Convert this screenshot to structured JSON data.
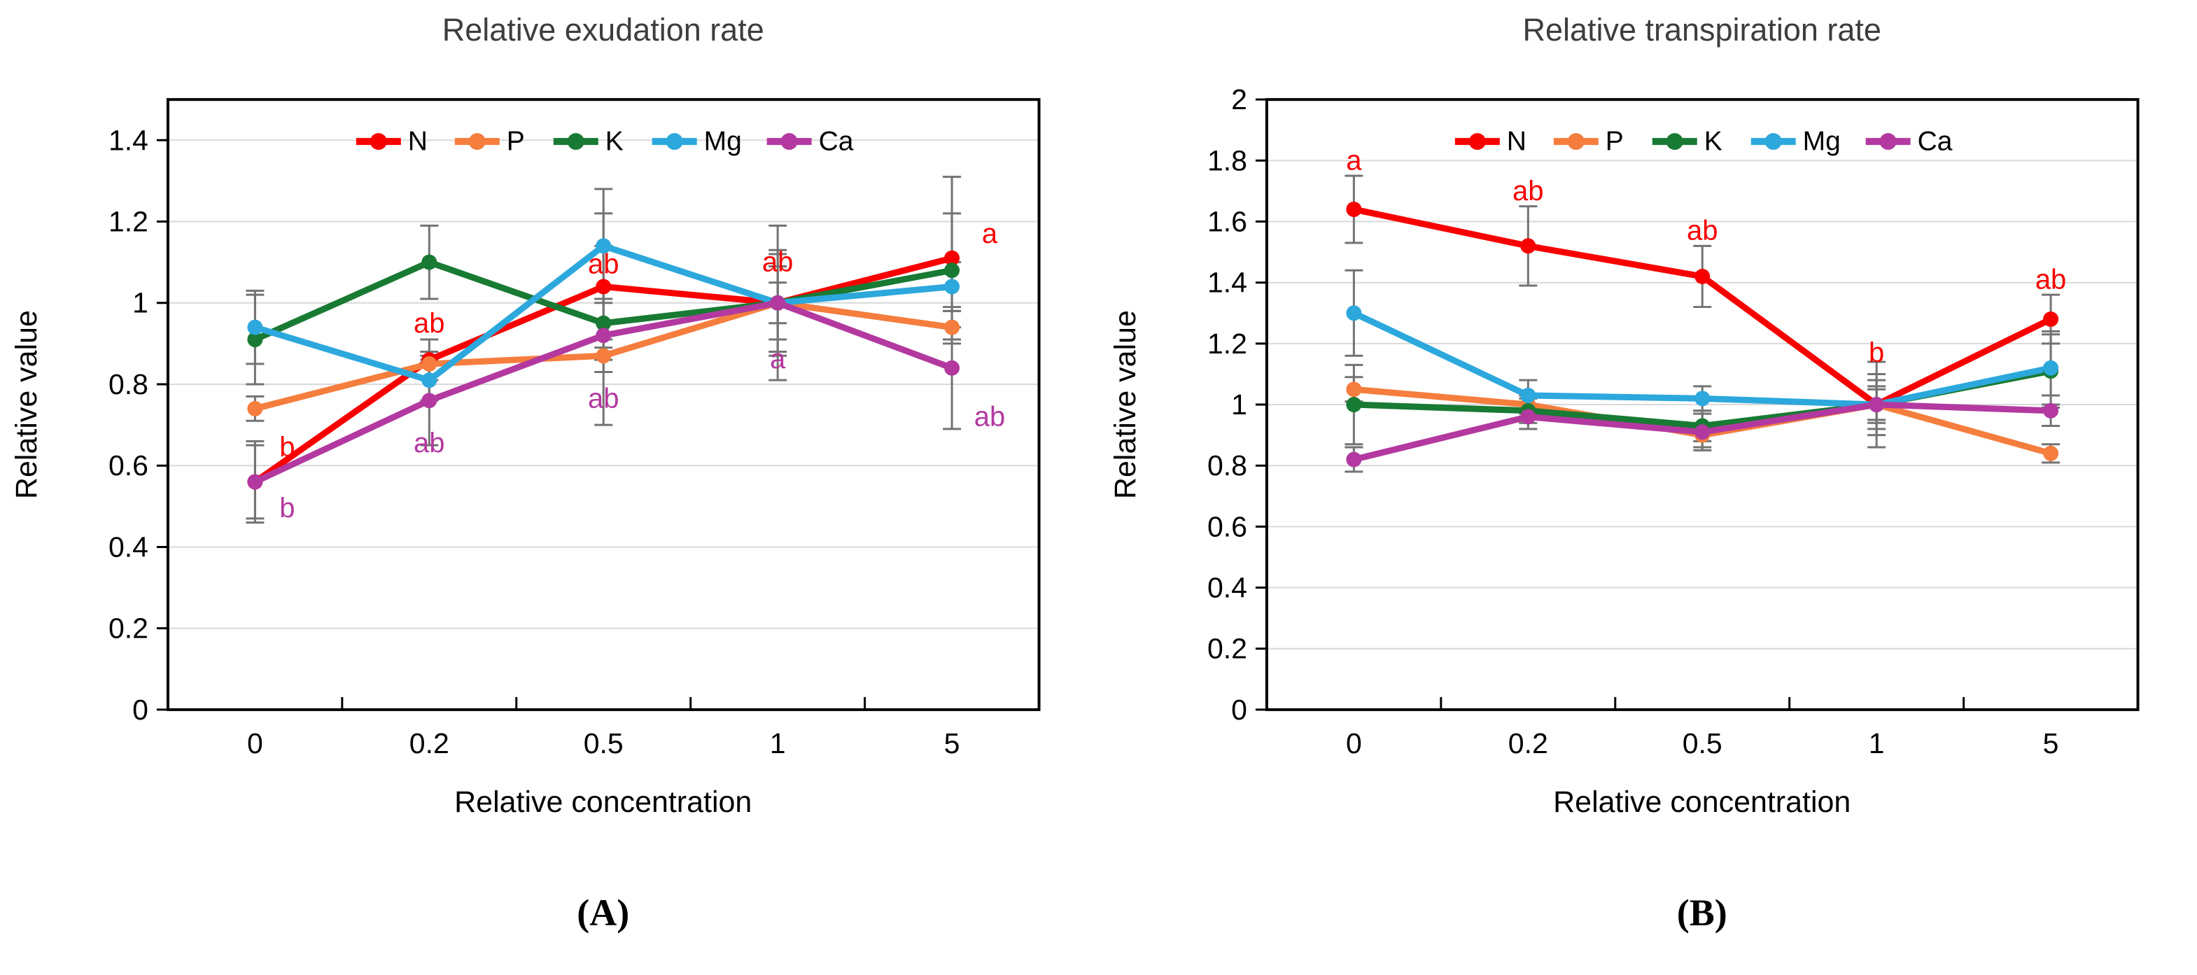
{
  "chart_data": [
    {
      "type": "line",
      "panel_label": "(A)",
      "title": "Relative exudation rate",
      "xlabel": "Relative concentration",
      "ylabel": "Relative value",
      "categories": [
        "0",
        "0.2",
        "0.5",
        "1",
        "5"
      ],
      "ylim": [
        0,
        1.5
      ],
      "ytick_step": 0.2,
      "ytick_max": 1.4,
      "grid": true,
      "legend_position": "top-center-inside",
      "series": [
        {
          "name": "N",
          "color": "#f80000",
          "values": [
            0.56,
            0.86,
            1.04,
            1.0,
            1.11
          ],
          "errors": [
            0.09,
            0.05,
            0.18,
            0.19,
            0.2
          ]
        },
        {
          "name": "P",
          "color": "#f57d3d",
          "values": [
            0.74,
            0.85,
            0.87,
            1.0,
            0.94
          ],
          "errors": [
            0.03,
            0.03,
            0.04,
            0.12,
            0.04
          ]
        },
        {
          "name": "K",
          "color": "#187a33",
          "values": [
            0.91,
            1.1,
            0.95,
            1.0,
            1.08
          ],
          "errors": [
            0.11,
            0.09,
            0.06,
            0.09,
            0.14
          ]
        },
        {
          "name": "Mg",
          "color": "#2ca8dd",
          "values": [
            0.94,
            0.81,
            1.14,
            1.0,
            1.04
          ],
          "errors": [
            0.09,
            0.05,
            0.14,
            0.05,
            0.06
          ]
        },
        {
          "name": "Ca",
          "color": "#b339a0",
          "values": [
            0.56,
            0.76,
            0.92,
            1.0,
            0.84
          ],
          "errors": [
            0.1,
            0.11,
            0.22,
            0.13,
            0.15
          ]
        }
      ],
      "letters": [
        {
          "text": "b",
          "col": 0,
          "y": 0.645,
          "color": "#f80000",
          "dx": 46
        },
        {
          "text": "ab",
          "col": 1,
          "y": 0.95,
          "color": "#f80000",
          "dx": 0
        },
        {
          "text": "ab",
          "col": 2,
          "y": 1.095,
          "color": "#f80000",
          "dx": 0
        },
        {
          "text": "ab",
          "col": 3,
          "y": 1.1,
          "color": "#f80000",
          "dx": 0
        },
        {
          "text": "a",
          "col": 4,
          "y": 1.17,
          "color": "#f80000",
          "dx": 54
        },
        {
          "text": "b",
          "col": 0,
          "y": 0.495,
          "color": "#b339a0",
          "dx": 46
        },
        {
          "text": "ab",
          "col": 1,
          "y": 0.655,
          "color": "#b339a0",
          "dx": 0
        },
        {
          "text": "ab",
          "col": 2,
          "y": 0.765,
          "color": "#b339a0",
          "dx": 0
        },
        {
          "text": "a",
          "col": 3,
          "y": 0.862,
          "color": "#b339a0",
          "dx": 0
        },
        {
          "text": "ab",
          "col": 4,
          "y": 0.72,
          "color": "#b339a0",
          "dx": 54
        }
      ]
    },
    {
      "type": "line",
      "panel_label": "(B)",
      "title": "Relative transpiration rate",
      "xlabel": "Relative concentration",
      "ylabel": "Relative value",
      "categories": [
        "0",
        "0.2",
        "0.5",
        "1",
        "5"
      ],
      "ylim": [
        0,
        2
      ],
      "ytick_step": 0.2,
      "ytick_max": 2.0,
      "grid": true,
      "legend_position": "top-center-inside",
      "series": [
        {
          "name": "N",
          "color": "#f80000",
          "values": [
            1.64,
            1.52,
            1.42,
            1.0,
            1.28
          ],
          "errors": [
            0.11,
            0.13,
            0.1,
            0.14,
            0.08
          ]
        },
        {
          "name": "P",
          "color": "#f57d3d",
          "values": [
            1.05,
            1.0,
            0.9,
            1.0,
            0.84
          ],
          "errors": [
            0.04,
            0.03,
            0.04,
            0.05,
            0.03
          ]
        },
        {
          "name": "K",
          "color": "#187a33",
          "values": [
            1.0,
            0.98,
            0.93,
            1.0,
            1.11
          ],
          "errors": [
            0.13,
            0.04,
            0.05,
            0.08,
            0.12
          ]
        },
        {
          "name": "Mg",
          "color": "#2ca8dd",
          "values": [
            1.3,
            1.03,
            1.02,
            1.0,
            1.12
          ],
          "errors": [
            0.14,
            0.05,
            0.04,
            0.06,
            0.12
          ]
        },
        {
          "name": "Ca",
          "color": "#b339a0",
          "values": [
            0.82,
            0.96,
            0.91,
            1.0,
            0.98
          ],
          "errors": [
            0.04,
            0.04,
            0.06,
            0.1,
            0.05
          ]
        }
      ],
      "letters": [
        {
          "text": "a",
          "col": 0,
          "y": 1.8,
          "color": "#f80000",
          "dx": 0
        },
        {
          "text": "ab",
          "col": 1,
          "y": 1.7,
          "color": "#f80000",
          "dx": 0
        },
        {
          "text": "ab",
          "col": 2,
          "y": 1.57,
          "color": "#f80000",
          "dx": 0
        },
        {
          "text": "b",
          "col": 3,
          "y": 1.17,
          "color": "#f80000",
          "dx": 0
        },
        {
          "text": "ab",
          "col": 4,
          "y": 1.41,
          "color": "#f80000",
          "dx": 0
        }
      ]
    }
  ]
}
